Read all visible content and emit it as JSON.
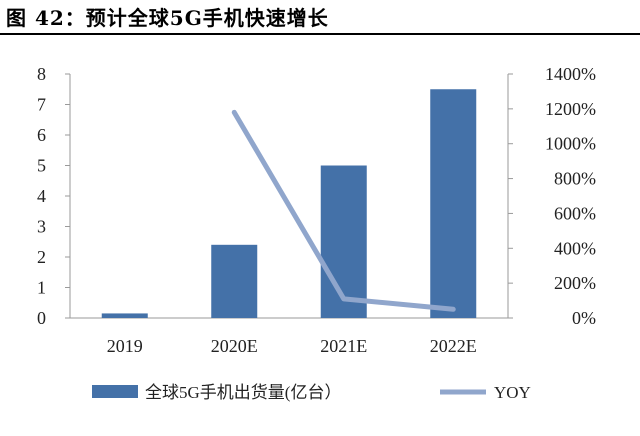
{
  "title": "图 42：预计全球5G手机快速增长",
  "chart_data": {
    "type": "bar",
    "categories": [
      "2019",
      "2020E",
      "2021E",
      "2022E"
    ],
    "series": [
      {
        "name": "全球5G手机出货量(亿台）",
        "type": "bar",
        "axis": "left",
        "values": [
          0.15,
          2.4,
          5.0,
          7.5
        ],
        "color": "#4471a8"
      },
      {
        "name": "YOY",
        "type": "line",
        "axis": "right",
        "values": [
          null,
          1180,
          110,
          50
        ],
        "color": "#90a6cc"
      }
    ],
    "y_left": {
      "min": 0,
      "max": 8,
      "ticks": [
        0,
        1,
        2,
        3,
        4,
        5,
        6,
        7,
        8
      ]
    },
    "y_right": {
      "min": 0,
      "max": 1400,
      "ticks": [
        "0%",
        "200%",
        "400%",
        "600%",
        "800%",
        "1000%",
        "1200%",
        "1400%"
      ]
    },
    "grid": false,
    "legend": "bottom"
  }
}
